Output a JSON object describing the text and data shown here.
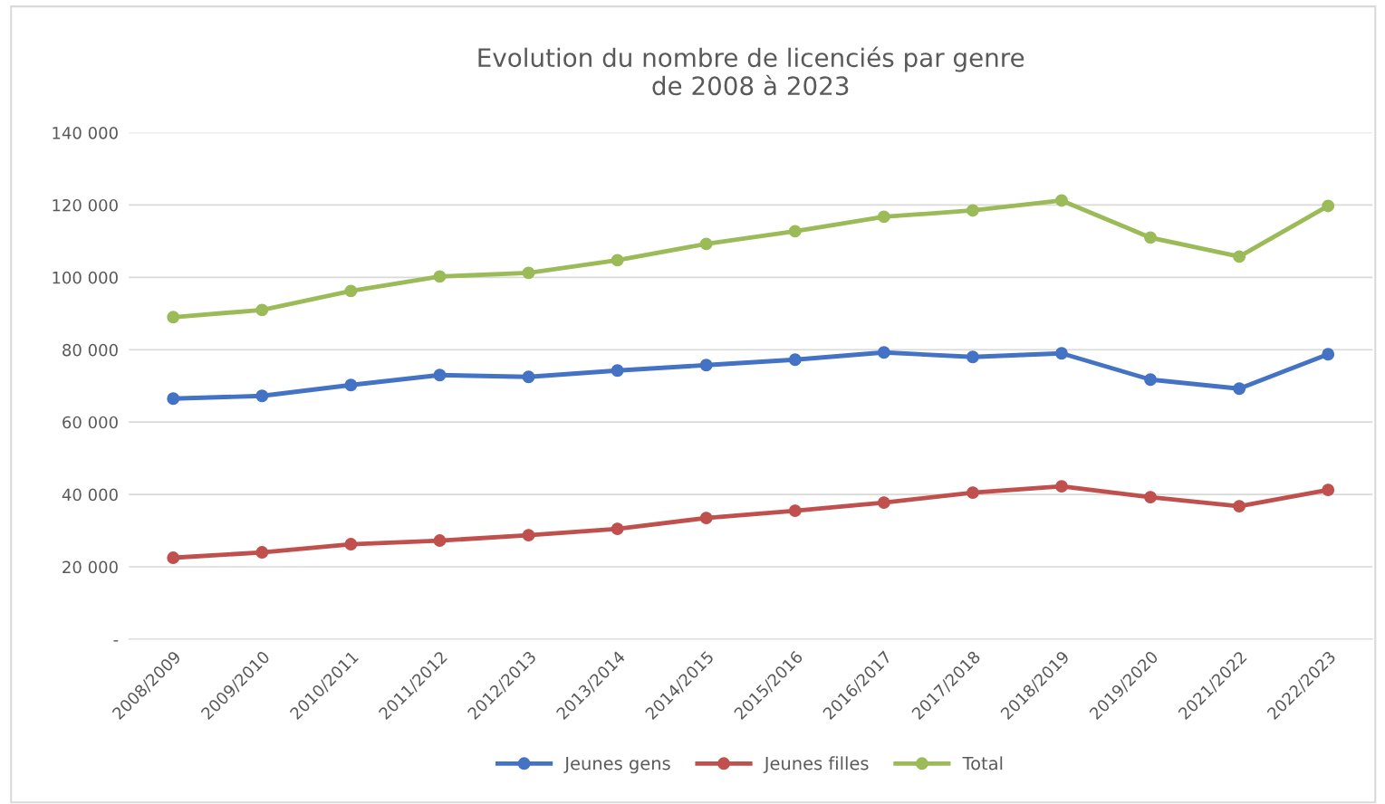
{
  "chart_data": {
    "type": "line",
    "title": "Evolution du nombre de licenciés par genre\nde 2008 à 2023",
    "categories": [
      "2008/2009",
      "2009/2010",
      "2010/2011",
      "2011/2012",
      "2012/2013",
      "2013/2014",
      "2014/2015",
      "2015/2016",
      "2016/2017",
      "2017/2018",
      "2018/2019",
      "2019/2020",
      "2021/2022",
      "2022/2023"
    ],
    "series": [
      {
        "name": "Jeunes gens",
        "color": "#4472c4",
        "values": [
          66500,
          67250,
          70250,
          73000,
          72500,
          74250,
          75750,
          77250,
          79250,
          78000,
          79000,
          71750,
          69250,
          78750
        ]
      },
      {
        "name": "Jeunes filles",
        "color": "#c0504d",
        "values": [
          22500,
          24000,
          26250,
          27250,
          28750,
          30500,
          33500,
          35500,
          37750,
          40500,
          42250,
          39250,
          36750,
          41250
        ]
      },
      {
        "name": "Total",
        "color": "#9bbb59",
        "values": [
          89000,
          91000,
          96250,
          100250,
          101250,
          104750,
          109250,
          112750,
          116750,
          118500,
          121250,
          111000,
          105750,
          119750
        ]
      }
    ],
    "ylim": [
      0,
      140000
    ],
    "yticks": [
      {
        "value": 0,
        "label": "-"
      },
      {
        "value": 20000,
        "label": "20 000"
      },
      {
        "value": 40000,
        "label": "40 000"
      },
      {
        "value": 60000,
        "label": "60 000"
      },
      {
        "value": 80000,
        "label": "80 000"
      },
      {
        "value": 100000,
        "label": "100 000"
      },
      {
        "value": 120000,
        "label": "120 000"
      },
      {
        "value": 140000,
        "label": "140 000"
      }
    ],
    "grid": "y",
    "legend": "bottom",
    "marker": "circle",
    "line_style": "solid"
  }
}
